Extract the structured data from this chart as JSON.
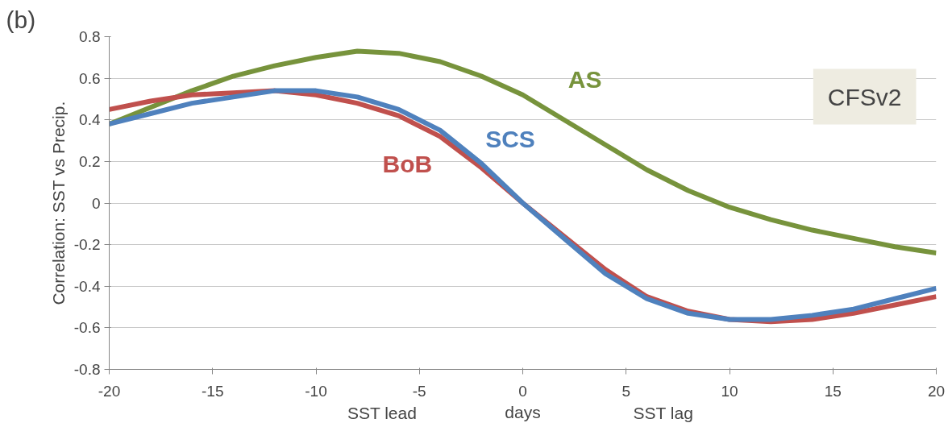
{
  "chart_data": {
    "type": "line",
    "ylabel": "Correlation: SST vs Precip.",
    "xlabel": "days",
    "annotations": [
      "(b)",
      "CFSv2",
      "SST lead",
      "SST lag"
    ],
    "x": [
      -20,
      -18,
      -16,
      -14,
      -12,
      -10,
      -8,
      -6,
      -4,
      -2,
      0,
      2,
      4,
      6,
      8,
      10,
      12,
      14,
      16,
      18,
      20
    ],
    "series": [
      {
        "name": "AS",
        "color": "#77933c",
        "values": [
          0.38,
          0.46,
          0.54,
          0.61,
          0.66,
          0.7,
          0.73,
          0.72,
          0.68,
          0.61,
          0.52,
          0.4,
          0.28,
          0.16,
          0.06,
          -0.02,
          -0.08,
          -0.13,
          -0.17,
          -0.21,
          -0.24
        ]
      },
      {
        "name": "BoB",
        "color": "#c0504d",
        "values": [
          0.45,
          0.49,
          0.52,
          0.53,
          0.54,
          0.52,
          0.48,
          0.42,
          0.32,
          0.17,
          0.0,
          -0.16,
          -0.32,
          -0.45,
          -0.52,
          -0.56,
          -0.57,
          -0.56,
          -0.53,
          -0.49,
          -0.45
        ]
      },
      {
        "name": "SCS",
        "color": "#4f81bd",
        "values": [
          0.38,
          0.43,
          0.48,
          0.51,
          0.54,
          0.54,
          0.51,
          0.45,
          0.35,
          0.19,
          0.0,
          -0.17,
          -0.34,
          -0.46,
          -0.53,
          -0.56,
          -0.56,
          -0.54,
          -0.51,
          -0.46,
          -0.41
        ]
      }
    ],
    "xlim": [
      -20,
      20
    ],
    "xticks": [
      -20,
      -15,
      -10,
      -5,
      0,
      5,
      10,
      15,
      20
    ],
    "ylim": [
      -0.8,
      0.8
    ],
    "yticks": [
      -0.8,
      -0.6,
      -0.4,
      -0.2,
      0,
      0.2,
      0.4,
      0.6,
      0.8
    ],
    "grid": "y",
    "marker": "none",
    "line_style": "solid"
  }
}
